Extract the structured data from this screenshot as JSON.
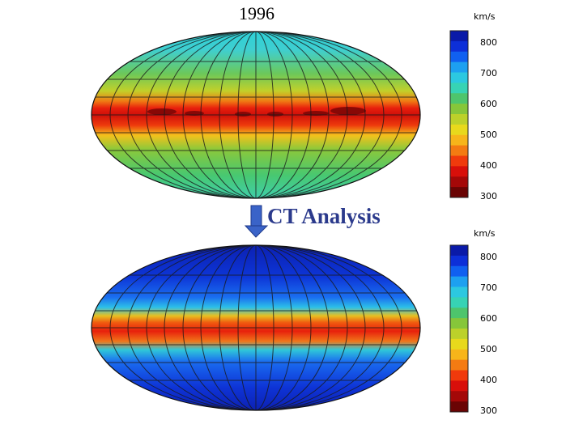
{
  "top_map": {
    "year_label": "1996"
  },
  "arrow": {
    "label": "CT Analysis"
  },
  "colorbar_top": {
    "unit": "km/s",
    "ticks": [
      "800",
      "700",
      "600",
      "500",
      "400",
      "300"
    ],
    "colors": [
      "#0a1aa8",
      "#0d2fd8",
      "#1060f0",
      "#1da0f0",
      "#2cc8e0",
      "#37d3b4",
      "#4ec56c",
      "#86c63a",
      "#bcd12a",
      "#e8d91c",
      "#f7b51a",
      "#f47b12",
      "#f03a0c",
      "#d80f0a",
      "#a40808",
      "#6a0404"
    ]
  },
  "colorbar_bottom": {
    "unit": "km/s",
    "ticks": [
      "800",
      "700",
      "600",
      "500",
      "400",
      "300"
    ],
    "colors": [
      "#0a1aa8",
      "#0d2fd8",
      "#1060f0",
      "#1da0f0",
      "#2cc8e0",
      "#37d3b4",
      "#4ec56c",
      "#86c63a",
      "#bcd12a",
      "#e8d91c",
      "#f7b51a",
      "#f47b12",
      "#f03a0c",
      "#d80f0a",
      "#a40808",
      "#6a0404"
    ]
  }
}
